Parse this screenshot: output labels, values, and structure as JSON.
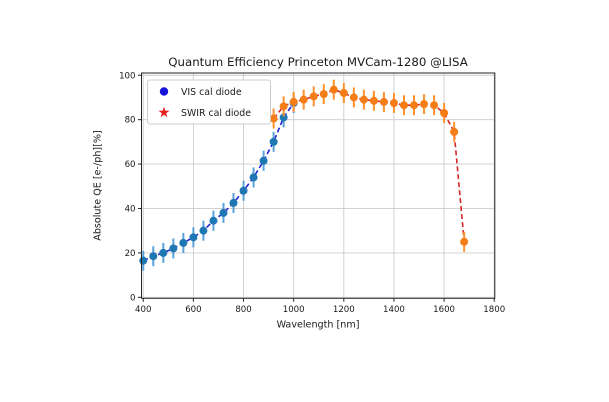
{
  "figure": {
    "background": "#ffffff"
  },
  "chart_data": {
    "type": "scatter",
    "title": "Quantum Efficiency Princeton MVCam-1280 @LISA",
    "xlabel": "Wavelength [nm]",
    "ylabel": "Absolute QE [e-/ph][%]",
    "xlim": [
      400,
      1800
    ],
    "ylim": [
      0,
      100
    ],
    "xticks": [
      400,
      600,
      800,
      1000,
      1200,
      1400,
      1600,
      1800
    ],
    "yticks": [
      0,
      20,
      40,
      60,
      80,
      100
    ],
    "grid": true,
    "grid_color": "#cccccc",
    "spine_color": "#262626",
    "legend": {
      "position": "upper-left",
      "entries": [
        {
          "label": "VIS cal diode",
          "marker": "circle",
          "color": "#1414dd"
        },
        {
          "label": "SWIR cal diode",
          "marker": "star",
          "color": "#e32222"
        }
      ]
    },
    "series": [
      {
        "name": "VIS cal diode",
        "marker": "circle",
        "marker_color": "#1f77b4",
        "errorbar_color": "#59a1d8",
        "line_color": "#2222d6",
        "line_style": "dashed",
        "x": [
          400,
          440,
          480,
          520,
          560,
          600,
          640,
          680,
          720,
          760,
          800,
          840,
          880,
          920,
          960,
          1000
        ],
        "y": [
          16.5,
          18.5,
          20,
          22,
          24.5,
          27,
          30,
          34.5,
          38,
          42.5,
          48,
          54,
          61.5,
          70,
          81,
          87.5
        ],
        "yerr": [
          4.5,
          4.5,
          4.5,
          4.5,
          4.5,
          4.5,
          4.5,
          4.5,
          4.5,
          4.5,
          4.5,
          4.5,
          4.5,
          4.5,
          4.5,
          4.5
        ]
      },
      {
        "name": "SWIR cal diode",
        "marker": "circle",
        "marker_color": "#f57d17",
        "errorbar_color": "#ff922e",
        "line_color": "#d62728",
        "line_style": "dashed",
        "x": [
          920,
          960,
          1000,
          1040,
          1080,
          1120,
          1160,
          1200,
          1240,
          1280,
          1320,
          1360,
          1400,
          1440,
          1480,
          1520,
          1560,
          1600,
          1640,
          1680
        ],
        "y": [
          80.5,
          86,
          88,
          89,
          90.5,
          91.5,
          93.5,
          92,
          90,
          89,
          88.5,
          88,
          87.5,
          86.5,
          86.5,
          87,
          86.5,
          83,
          74.5,
          25
        ],
        "yerr": [
          4.5,
          4.5,
          4.5,
          4.5,
          4.5,
          4.5,
          4.5,
          4.5,
          4.5,
          4.5,
          4.5,
          4.5,
          4.5,
          4.5,
          4.5,
          4.5,
          4.5,
          4.5,
          4.5,
          4.5
        ]
      }
    ]
  }
}
